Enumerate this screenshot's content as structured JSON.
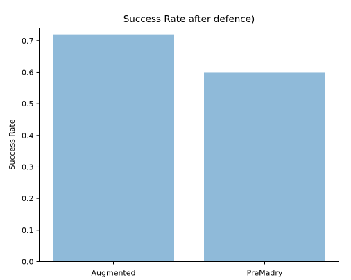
{
  "chart_data": {
    "type": "bar",
    "title": "Success Rate after defence)",
    "xlabel": "",
    "ylabel": "Success Rate",
    "categories": [
      "Augmented",
      "PreMadry"
    ],
    "values": [
      0.72,
      0.6
    ],
    "ylim": [
      0,
      0.74
    ],
    "yticks": [
      0.0,
      0.1,
      0.2,
      0.3,
      0.4,
      0.5,
      0.6,
      0.7
    ],
    "ytick_labels": [
      "0.0",
      "0.1",
      "0.2",
      "0.3",
      "0.4",
      "0.5",
      "0.6",
      "0.7"
    ],
    "bar_color": "#8fbad9",
    "grid": false,
    "legend": "none"
  }
}
